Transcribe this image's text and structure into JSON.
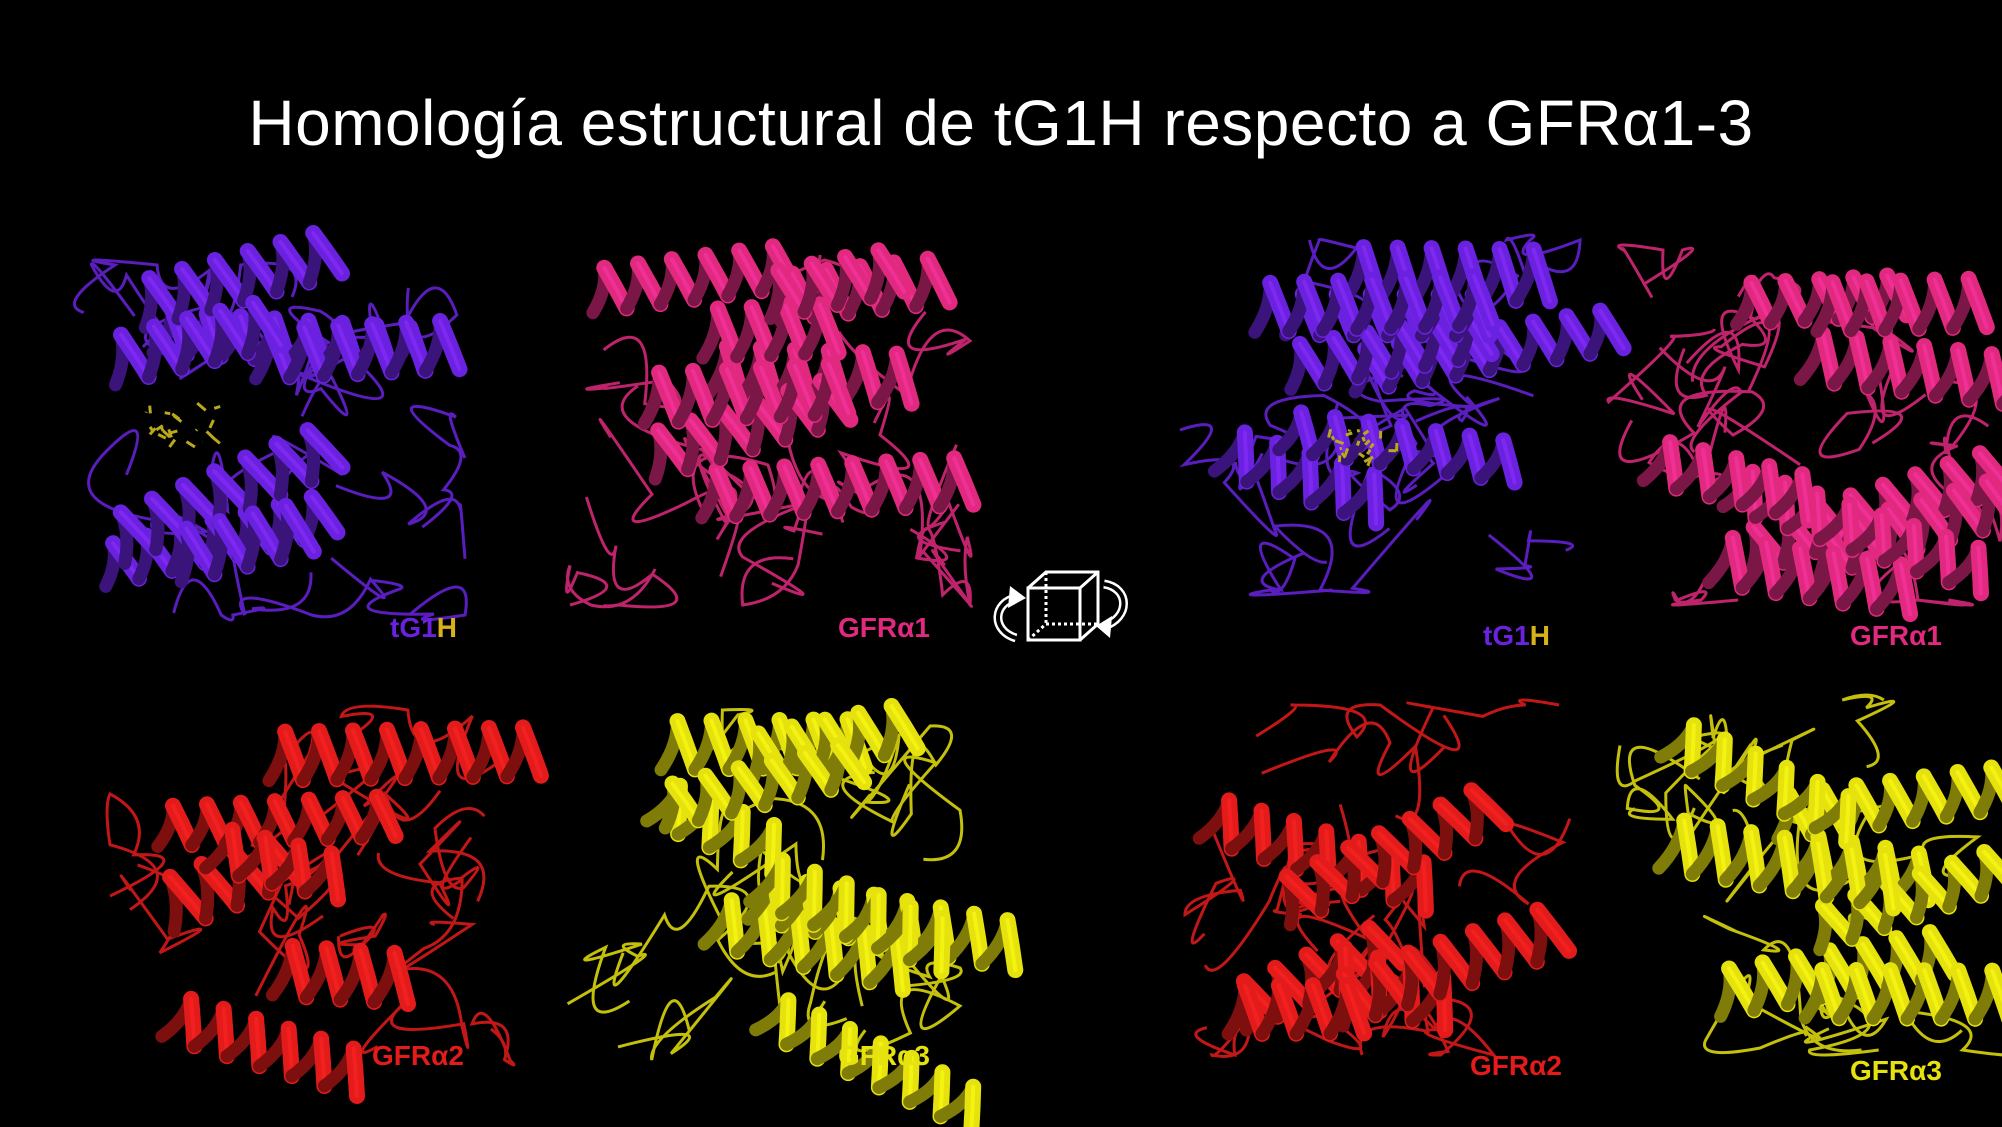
{
  "slide": {
    "title": "Homología estructural de tG1H respecto a GFRα1-3"
  },
  "panels": [
    {
      "name": "tg1h-front",
      "color": "#6a22e0",
      "label": {
        "prefix": "tG",
        "mid": "1",
        "suffix": "H"
      },
      "ligand": true
    },
    {
      "name": "gfra1-front",
      "color": "#e0297f",
      "label_text": "GFRα1"
    },
    {
      "name": "tg1h-rotated",
      "color": "#6a22e0",
      "label": {
        "prefix": "tG",
        "mid": "1",
        "suffix": "H"
      },
      "ligand": true
    },
    {
      "name": "gfra1-rotated",
      "color": "#e0297f",
      "label_text": "GFRα1"
    },
    {
      "name": "gfra2-front",
      "color": "#e41b1b",
      "label_text": "GFRα2"
    },
    {
      "name": "gfra3-front",
      "color": "#e6e20e",
      "label_text": "GFRα3"
    },
    {
      "name": "gfra2-rotated",
      "color": "#e41b1b",
      "label_text": "GFRα2"
    },
    {
      "name": "gfra3-rotated",
      "color": "#e6e20e",
      "label_text": "GFRα3"
    }
  ],
  "colors": {
    "tg1h": "#6a22e0",
    "gfra1": "#e0297f",
    "gfra2": "#e41b1b",
    "gfra3": "#e6e20e",
    "ligand": "#b9a81c",
    "label_mid_yellow": "#d8b21a"
  },
  "icons": {
    "rotation": "rotate-cube-icon"
  }
}
